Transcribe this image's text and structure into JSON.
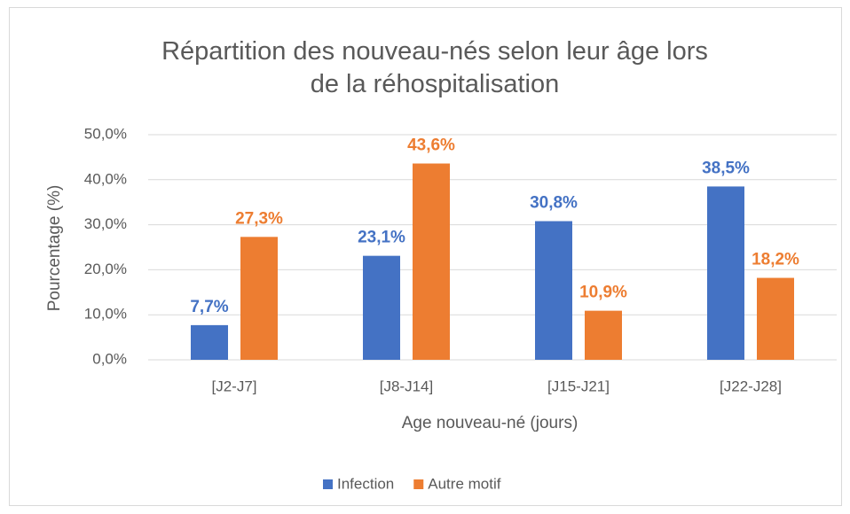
{
  "chart_data": {
    "type": "bar",
    "title": "Répartition des nouveau-nés selon leur âge lors de la réhospitalisation",
    "x_label": "Age nouveau-né (jours)",
    "y_label": "Pourcentage (%)",
    "categories": [
      "[J2-J7]",
      "[J8-J14]",
      "[J15-J21]",
      "[J22-J28]"
    ],
    "series": [
      {
        "name": "Infection",
        "color": "#4472c4",
        "values": [
          7.7,
          23.1,
          30.8,
          38.5
        ],
        "value_labels": [
          "7,7%",
          "23,1%",
          "30,8%",
          "38,5%"
        ]
      },
      {
        "name": "Autre motif",
        "color": "#ed7d31",
        "values": [
          27.3,
          43.6,
          10.9,
          18.2
        ],
        "value_labels": [
          "27,3%",
          "43,6%",
          "10,9%",
          "18,2%"
        ]
      }
    ],
    "ylim": [
      0,
      50
    ],
    "yticks": [
      {
        "value": 0,
        "label": "0,0%"
      },
      {
        "value": 10,
        "label": "10,0%"
      },
      {
        "value": 20,
        "label": "20,0%"
      },
      {
        "value": 30,
        "label": "30,0%"
      },
      {
        "value": 40,
        "label": "40,0%"
      },
      {
        "value": 50,
        "label": "50,0%"
      }
    ],
    "grid": true,
    "legend": "bottom"
  }
}
